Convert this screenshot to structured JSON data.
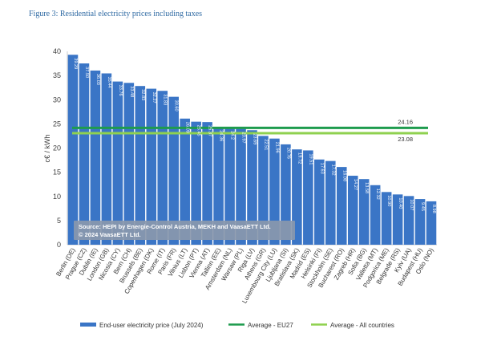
{
  "figure_title": "Figure 3: Residential electricity prices including taxes",
  "colors": {
    "bar": "#3a75c6",
    "eu27": "#1e9b4e",
    "all": "#8fd14f",
    "grid": "#d9d9d9",
    "source_box": "#8a98ac"
  },
  "source_lines": [
    "Source: HEPI by Energie-Control Austria, MEKH and VaasaETT Ltd.",
    "© 2024 VaasaETT Ltd."
  ],
  "chart_data": {
    "type": "bar",
    "title": "",
    "xlabel": "",
    "ylabel": "c€ / kWh",
    "ylim": [
      0,
      40
    ],
    "yticks": [
      0,
      5,
      10,
      15,
      20,
      25,
      30,
      35,
      40
    ],
    "grid": false,
    "legend_position": "bottom",
    "categories": [
      "Berlin (DE)",
      "Prague (CZ)",
      "Dublin (IE)",
      "London (GB)",
      "Nicosia (CY)",
      "Bern (CH)",
      "Brussels (BE)",
      "Copenhagen (DK)",
      "Rome (IT)",
      "Paris (FR)",
      "Vilnius (LT)",
      "Lisbon (PT)",
      "Vienna (AT)",
      "Tallinn (EE)",
      "Amsterdam (NL)",
      "Warsaw (PL)",
      "Riga (LV)",
      "Athens (GR)",
      "Luxembourg City (LU)",
      "Ljubljana (SI)",
      "Bratislava (SK)",
      "Madrid (ES)",
      "Helsinki (FI)",
      "Stockholm (SE)",
      "Bucharest (RO)",
      "Zagreb (HR)",
      "Sofia (BG)",
      "Valletta (MT)",
      "Podgorica (ME)",
      "Belgrade (RS)",
      "Kyiv (UA)",
      "Budapest (HU)",
      "Oslo (NO)"
    ],
    "series": [
      {
        "name": "End-user electricity price (July 2024)",
        "type": "bar",
        "values": [
          39.29,
          37.5,
          36.03,
          35.44,
          33.76,
          33.48,
          32.83,
          32.27,
          31.83,
          30.6,
          26.09,
          25.45,
          25.37,
          24.36,
          24.2,
          23.97,
          23.69,
          22.51,
          21.96,
          20.76,
          19.72,
          19.51,
          17.63,
          17.32,
          16.08,
          14.27,
          13.58,
          12.32,
          10.9,
          10.4,
          10.07,
          9.45,
          8.98
        ],
        "labels": [
          "39.29",
          "37.50",
          "36.03",
          "35.44",
          "33.76",
          "33.48",
          "32.83",
          "32.27",
          "31.83",
          "30.60",
          "26.09",
          "25.45",
          "25.37",
          "24.36",
          "24.2",
          "23.97",
          "23.69",
          "22.51",
          "21.96",
          "20.76",
          "19.72",
          "19.51",
          "17.63",
          "17.32",
          "16.08",
          "14.27",
          "13.58",
          "12.32",
          "10.90",
          "10.40",
          "10.07",
          "9.45",
          "8.98"
        ]
      },
      {
        "name": "Average - EU27",
        "type": "line",
        "value": 24.16,
        "label": "24.16"
      },
      {
        "name": "Average - All countries",
        "type": "line",
        "value": 23.08,
        "label": "23.08"
      }
    ]
  }
}
